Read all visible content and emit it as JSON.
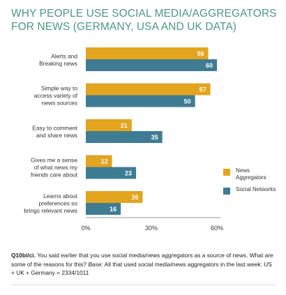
{
  "title": [
    "WHY PEOPLE USE SOCIAL MEDIA/AGGREGATORS",
    "FOR NEWS (GERMANY, USA AND UK DATA)"
  ],
  "colors": {
    "title": "#4a9a7c",
    "news_aggregators": "#e3a41e",
    "social_networks": "#3e7c94"
  },
  "legend": [
    {
      "label": "News Aggregators",
      "color": "#e3a41e"
    },
    {
      "label": "Social Networks",
      "color": "#3e7c94"
    }
  ],
  "chart_data": {
    "type": "bar",
    "orientation": "horizontal",
    "categories": [
      [
        "Alerts and",
        "Breaking news"
      ],
      [
        "Simple way to",
        "access variety of",
        "news sources"
      ],
      [
        "Easy to comment",
        "and share news"
      ],
      [
        "Gives me a sense",
        "of what news my",
        "friends care about"
      ],
      [
        "Learns about",
        "preferences so",
        "brings relevant news"
      ]
    ],
    "series": [
      {
        "name": "News Aggregators",
        "values": [
          56,
          57,
          21,
          12,
          26
        ]
      },
      {
        "name": "Social Networks",
        "values": [
          60,
          50,
          35,
          23,
          16
        ]
      }
    ],
    "xlim": [
      0,
      60
    ],
    "xticks": [
      "0%",
      "30%",
      "60%"
    ],
    "legend_position": "right",
    "grid": false
  },
  "footnote": {
    "question_id": "Q10bi/ci.",
    "question_text": "You said earlier that you use social media/news aggregators as a source of news. What are some of the reasons for this?",
    "base_label": "Base:",
    "base_text": "All that used social media/news aggregators in the last week: US + UK + Germany = 2334/1011"
  }
}
